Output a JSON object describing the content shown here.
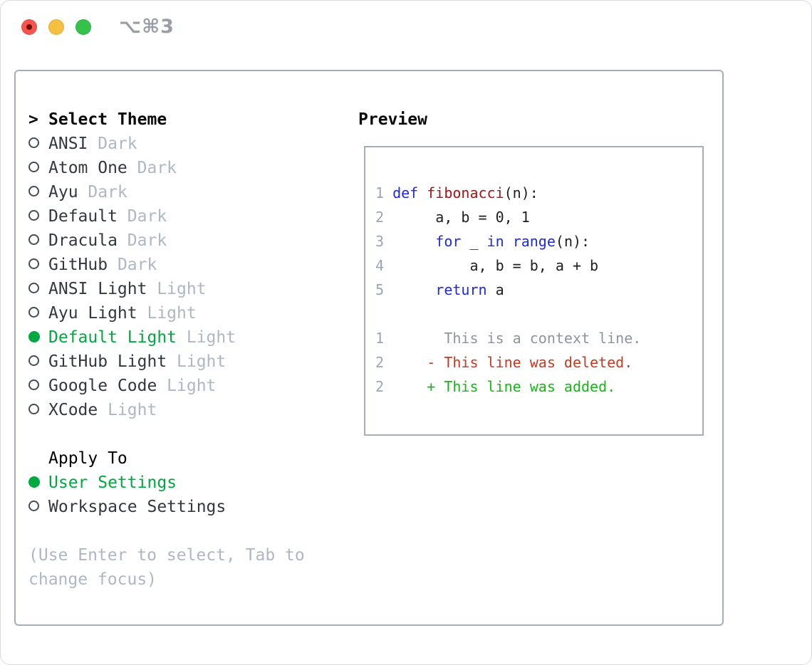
{
  "titlebar": {
    "shortcut": "⌥⌘3",
    "buttons": [
      "close",
      "minimize",
      "zoom"
    ]
  },
  "colors": {
    "accent_green": "#00a93f",
    "keyword_blue": "#1e28e6",
    "function_red": "#a81414",
    "deleted_red": "#c63a1e",
    "added_green": "#16b616",
    "context_gray": "#8d949d",
    "muted_gray": "#aeb7c2",
    "line_number_gray": "#9aa6b4",
    "border_gray": "#a6aeb9"
  },
  "theme_select": {
    "cursor": ">",
    "title": "Select Theme",
    "items": [
      {
        "name": "ANSI",
        "variant": "Dark",
        "selected": false
      },
      {
        "name": "Atom One",
        "variant": "Dark",
        "selected": false
      },
      {
        "name": "Ayu",
        "variant": "Dark",
        "selected": false
      },
      {
        "name": "Default",
        "variant": "Dark",
        "selected": false
      },
      {
        "name": "Dracula",
        "variant": "Dark",
        "selected": false
      },
      {
        "name": "GitHub",
        "variant": "Dark",
        "selected": false
      },
      {
        "name": "ANSI Light",
        "variant": "Light",
        "selected": false
      },
      {
        "name": "Ayu Light",
        "variant": "Light",
        "selected": false
      },
      {
        "name": "Default Light",
        "variant": "Light",
        "selected": true
      },
      {
        "name": "GitHub Light",
        "variant": "Light",
        "selected": false
      },
      {
        "name": "Google Code",
        "variant": "Light",
        "selected": false
      },
      {
        "name": "XCode",
        "variant": "Light",
        "selected": false
      }
    ]
  },
  "apply_to": {
    "title": "Apply To",
    "items": [
      {
        "name": "User Settings",
        "selected": true
      },
      {
        "name": "Workspace Settings",
        "selected": false
      }
    ]
  },
  "help": {
    "lines": [
      "(Use Enter to select, Tab to",
      "change focus)"
    ]
  },
  "preview": {
    "title": "Preview",
    "code_lines": [
      {
        "num": "1",
        "tokens": [
          {
            "s": "plain",
            "t": " "
          },
          {
            "s": "keyword",
            "t": "def"
          },
          {
            "s": "plain",
            "t": " "
          },
          {
            "s": "function",
            "t": "fibonacci"
          },
          {
            "s": "plain",
            "t": "(n):"
          }
        ]
      },
      {
        "num": "2",
        "tokens": [
          {
            "s": "plain",
            "t": "      a, b = 0, 1"
          }
        ]
      },
      {
        "num": "3",
        "tokens": [
          {
            "s": "plain",
            "t": "      "
          },
          {
            "s": "keyword",
            "t": "for"
          },
          {
            "s": "plain",
            "t": " _ "
          },
          {
            "s": "keyword",
            "t": "in"
          },
          {
            "s": "plain",
            "t": " "
          },
          {
            "s": "keyword",
            "t": "range"
          },
          {
            "s": "plain",
            "t": "(n):"
          }
        ]
      },
      {
        "num": "4",
        "tokens": [
          {
            "s": "plain",
            "t": "          a, b = b, a + b"
          }
        ]
      },
      {
        "num": "5",
        "tokens": [
          {
            "s": "plain",
            "t": "      "
          },
          {
            "s": "keyword",
            "t": "return"
          },
          {
            "s": "plain",
            "t": " a"
          }
        ]
      },
      {
        "num": "",
        "tokens": []
      },
      {
        "num": "1",
        "tokens": [
          {
            "s": "context",
            "t": "       This is a context line."
          }
        ]
      },
      {
        "num": "2",
        "tokens": [
          {
            "s": "deleted",
            "t": "     - This line was deleted."
          }
        ]
      },
      {
        "num": "2",
        "tokens": [
          {
            "s": "added",
            "t": "     + This line was added."
          }
        ]
      }
    ]
  }
}
